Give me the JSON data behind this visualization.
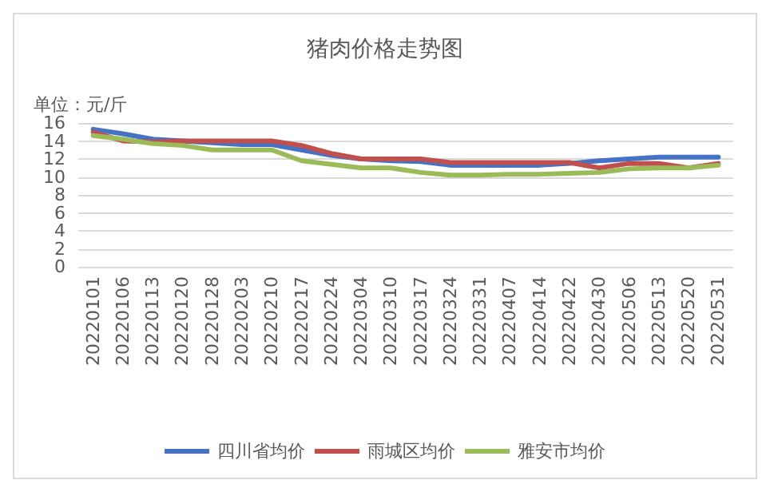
{
  "chart_data": {
    "type": "line",
    "title": "猪肉价格走势图",
    "ylabel": "单位：元/斤",
    "categories": [
      "20220101",
      "20220106",
      "20220113",
      "20220120",
      "20220128",
      "20220203",
      "20220210",
      "20220217",
      "20220224",
      "20220304",
      "20220310",
      "20220317",
      "20220324",
      "20220331",
      "20220407",
      "20220414",
      "20220422",
      "20220430",
      "20220506",
      "20220513",
      "20220520",
      "20220531"
    ],
    "series": [
      {
        "name": "四川省均价",
        "color": "#4472c4",
        "values": [
          15.3,
          14.8,
          14.2,
          14,
          13.8,
          13.6,
          13.6,
          13,
          12.4,
          12,
          11.8,
          11.7,
          11.3,
          11.3,
          11.3,
          11.3,
          11.5,
          11.8,
          12,
          12.2,
          12.2,
          12.2
        ]
      },
      {
        "name": "雨城区均价",
        "color": "#c0504d",
        "values": [
          15,
          14,
          13.9,
          14,
          14,
          14,
          14,
          13.5,
          12.6,
          12,
          12,
          12,
          11.6,
          11.6,
          11.6,
          11.6,
          11.6,
          11,
          11.5,
          11.5,
          11,
          11.5
        ]
      },
      {
        "name": "雅安市均价",
        "color": "#9bbb59",
        "values": [
          14.6,
          14.2,
          13.7,
          13.5,
          13,
          13,
          13,
          11.8,
          11.4,
          11,
          11,
          10.5,
          10.2,
          10.2,
          10.3,
          10.3,
          10.4,
          10.5,
          10.9,
          11,
          11,
          11.3
        ]
      }
    ],
    "ylim": [
      0,
      16
    ],
    "yticks": [
      0,
      2,
      4,
      6,
      8,
      10,
      12,
      14,
      16
    ],
    "grid": "y",
    "legend": "bottom",
    "marker": "none",
    "line_style": "solid"
  }
}
